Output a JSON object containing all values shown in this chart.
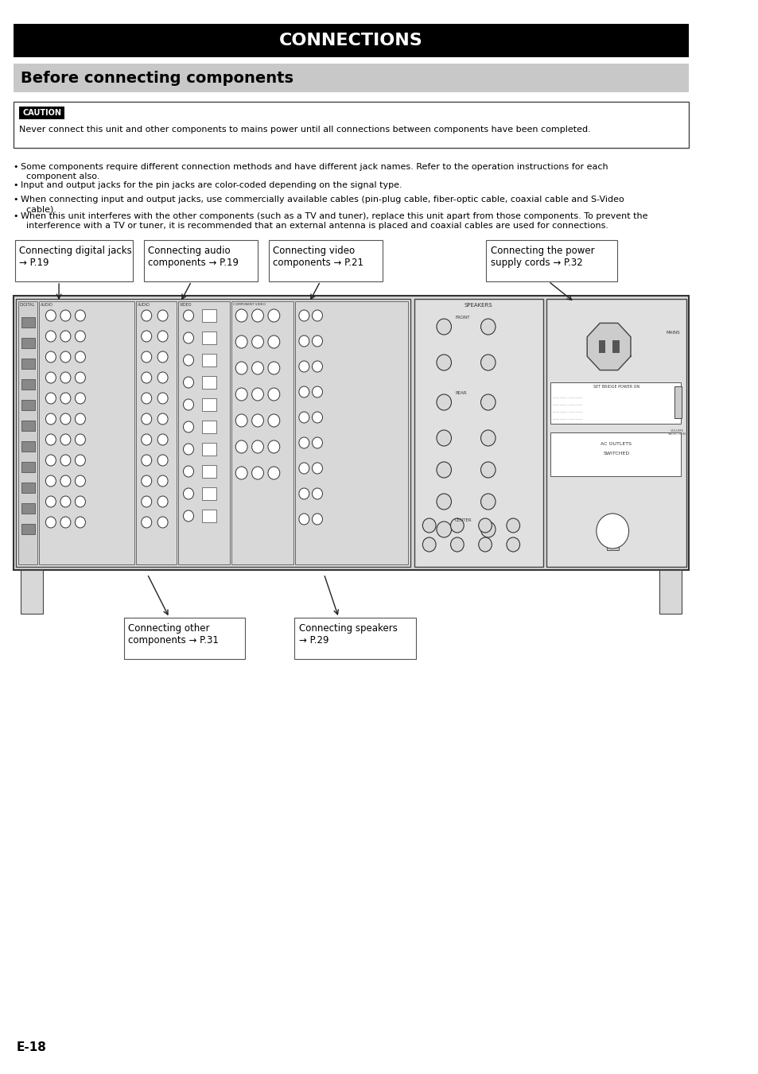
{
  "title": "CONNECTIONS",
  "subtitle": "Before connecting components",
  "caution_label": "CAUTION",
  "caution_text": "Never connect this unit and other components to mains power until all connections between components have been completed.",
  "bullets": [
    "Some components require different connection methods and have different jack names. Refer to the operation instructions for each\n  component also.",
    "Input and output jacks for the pin jacks are color-coded depending on the signal type.",
    "When connecting input and output jacks, use commercially available cables (pin-plug cable, fiber-optic cable, coaxial cable and S-Video\n  cable).",
    "When this unit interferes with the other components (such as a TV and tuner), replace this unit apart from those components. To prevent the\n  interference with a TV or tuner, it is recommended that an external antenna is placed and coaxial cables are used for connections."
  ],
  "page_label": "E-18",
  "bg_color": "#ffffff",
  "title_bg": "#000000",
  "title_fg": "#ffffff",
  "subtitle_bg": "#c8c8c8",
  "caution_bg": "#000000",
  "caution_fg": "#ffffff"
}
